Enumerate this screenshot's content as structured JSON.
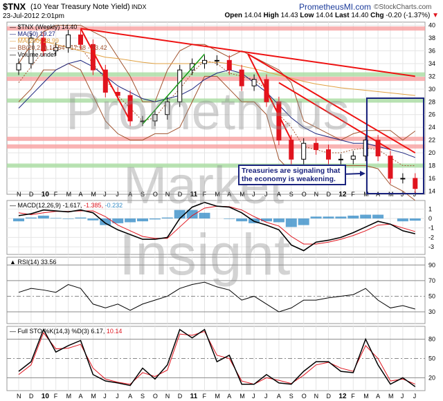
{
  "header": {
    "symbol": "$TNX",
    "name": "(10 Year Treasury Note Yield)",
    "exchange": "INDX",
    "date": "23-Jul-2012 2:01pm",
    "brand": "PrometheusMI.com",
    "credit": "©StockCharts.com",
    "quote": {
      "open_label": "Open",
      "open": "14.04",
      "high_label": "High",
      "high": "14.43",
      "low_label": "Low",
      "low": "14.04",
      "last_label": "Last",
      "last": "14.40",
      "chg_label": "Chg",
      "chg": "-0.20 (-1.37%)",
      "chg_arrow": "▼"
    }
  },
  "watermark": [
    "Prometheus",
    "Market",
    "Insight"
  ],
  "colors": {
    "up": "#000000",
    "down": "#e0141e",
    "ma50": "#1a237e",
    "ma200": "#e0a040",
    "bb": "#a0522d",
    "trend_red": "#ee1111",
    "trend_green": "#119911",
    "band_red": "#f7a0a0",
    "band_green": "#a8dca0",
    "hist": "#3a8fc8",
    "box": "#1a237e"
  },
  "annotation": "Treasuries are signaling that the economy is weakening.",
  "chart_data": [
    {
      "type": "candlestick",
      "title": "$TNX (Weekly) 14.40",
      "legend": [
        "$TNX (Weekly) 14.40",
        "MA(50) 19.27",
        "MA(200) 28.99",
        "BB(20,2.0) 12.54 - 17.98 - 23.42",
        "Volume undef"
      ],
      "x": [
        "N",
        "D",
        "10",
        "F",
        "M",
        "A",
        "M",
        "J",
        "J",
        "A",
        "S",
        "O",
        "N",
        "D",
        "11",
        "F",
        "M",
        "A",
        "M",
        "J",
        "J",
        "A",
        "S",
        "O",
        "N",
        "D",
        "12",
        "F",
        "M",
        "A",
        "M",
        "J",
        "J"
      ],
      "close": [
        34,
        38,
        36,
        36.5,
        38.5,
        37,
        33,
        29.5,
        29,
        25,
        25,
        26,
        28,
        33,
        34,
        34.5,
        34.5,
        33,
        30.5,
        31.5,
        28,
        22,
        19,
        21.5,
        20.5,
        19,
        19,
        19.5,
        22,
        19.5,
        16,
        16,
        14.4
      ],
      "ma50": [
        27,
        29,
        31,
        33,
        34,
        34.5,
        33.5,
        32,
        30.5,
        29.5,
        28.5,
        28,
        28.5,
        29,
        30,
        31.5,
        32.5,
        33,
        32.5,
        31,
        29.5,
        27.5,
        25.5,
        24,
        23,
        22.5,
        22,
        21.5,
        21.5,
        21,
        20.5,
        20,
        19.27
      ],
      "ma200": [
        38,
        38,
        37.5,
        37,
        36.5,
        36,
        35.5,
        35,
        34.8,
        34.5,
        34.2,
        34,
        34,
        34,
        34,
        34.2,
        34.2,
        34,
        33.6,
        33.2,
        32.7,
        32.2,
        31.7,
        31.2,
        30.8,
        30.5,
        30.2,
        30,
        29.8,
        29.6,
        29.4,
        29.2,
        28.99
      ],
      "bb_upper": [
        34,
        37,
        39,
        40,
        40,
        40,
        39,
        38,
        35,
        32,
        28,
        28,
        33,
        36,
        37,
        37,
        36,
        35,
        36,
        35,
        34,
        33,
        31,
        25,
        24,
        23,
        22,
        23,
        23.5,
        23.5,
        23.5,
        22,
        23.42
      ],
      "bb_lower": [
        28,
        30,
        33,
        33,
        34,
        33,
        29,
        25,
        23,
        22,
        22,
        23,
        23,
        24,
        28,
        32,
        32,
        30,
        28,
        28,
        26,
        19,
        17,
        17,
        17,
        17,
        18,
        18,
        18,
        17.5,
        15,
        14,
        12.54
      ],
      "yticks": [
        14,
        16,
        18,
        20,
        22,
        24,
        26,
        28,
        30,
        32,
        34,
        36,
        38,
        40
      ],
      "ylim": [
        13.5,
        40.5
      ],
      "bands_red": [
        39.5,
        31.6,
        22.2,
        21
      ],
      "bands_green": [
        32.3,
        28.2,
        18
      ],
      "trendlines_red": [
        [
          5,
          39.5,
          32,
          32
        ],
        [
          5,
          39.5,
          9,
          25
        ],
        [
          18.5,
          35.5,
          22,
          22
        ],
        [
          18.5,
          35.5,
          32,
          20
        ],
        [
          21,
          31,
          30,
          20.5
        ]
      ],
      "trendlines_green": [
        [
          10,
          24.5,
          15,
          35.5
        ]
      ]
    },
    {
      "type": "line",
      "title": "MACD(12,26,9)",
      "legend": [
        "MACD(12,26,9) -1.617,",
        "-1.385,",
        "-0.232"
      ],
      "macd": [
        0.3,
        0.5,
        0.9,
        0.8,
        0.7,
        0.9,
        0.6,
        -0.5,
        -1.2,
        -1.7,
        -2.2,
        -2.2,
        -2.0,
        0,
        1.2,
        1.7,
        1.3,
        1.2,
        0.6,
        -0.3,
        -0.7,
        -1.2,
        -2.8,
        -3.4,
        -2.5,
        -2.3,
        -2.0,
        -1.5,
        -0.9,
        -0.3,
        -0.6,
        -1.3,
        -1.617
      ],
      "signal": [
        0.6,
        0.4,
        0.6,
        0.75,
        0.75,
        0.8,
        0.8,
        0.2,
        -0.7,
        -1.3,
        -1.9,
        -2.1,
        -2.1,
        -0.9,
        0.3,
        1.1,
        1.3,
        1.25,
        0.9,
        0.2,
        -0.4,
        -0.8,
        -1.9,
        -2.7,
        -2.7,
        -2.5,
        -2.2,
        -1.8,
        -1.3,
        -0.7,
        -0.6,
        -1.0,
        -1.385
      ],
      "yticks": [
        1,
        0,
        -1,
        -2,
        -3
      ],
      "ylim": [
        -3.8,
        1.9
      ]
    },
    {
      "type": "line",
      "title": "RSI(14) 33.56",
      "legend": [
        "RSI(14) 33.56"
      ],
      "rsi": [
        55,
        60,
        58,
        55,
        65,
        60,
        40,
        35,
        40,
        32,
        40,
        45,
        50,
        60,
        65,
        68,
        62,
        58,
        45,
        50,
        40,
        30,
        35,
        45,
        45,
        48,
        50,
        52,
        60,
        45,
        35,
        38,
        33.56
      ],
      "yticks": [
        90,
        70,
        50,
        30
      ],
      "ylim": [
        15,
        100
      ]
    },
    {
      "type": "line",
      "title": "Full STO %K(14,3) %D(3)",
      "legend": [
        "Full STO %K(14,3) %D(3) 6.17,",
        "10.14"
      ],
      "k": [
        30,
        45,
        95,
        60,
        70,
        78,
        25,
        15,
        12,
        8,
        35,
        18,
        40,
        95,
        82,
        95,
        45,
        55,
        10,
        10,
        25,
        12,
        10,
        30,
        45,
        45,
        30,
        28,
        80,
        40,
        10,
        20,
        6.17
      ],
      "d": [
        25,
        40,
        90,
        65,
        66,
        72,
        35,
        18,
        13,
        10,
        28,
        22,
        32,
        88,
        86,
        92,
        55,
        50,
        15,
        10,
        20,
        16,
        11,
        24,
        40,
        44,
        35,
        30,
        70,
        50,
        15,
        18,
        10.14
      ],
      "yticks": [
        80,
        50,
        20
      ],
      "ylim": [
        0,
        100
      ]
    }
  ]
}
